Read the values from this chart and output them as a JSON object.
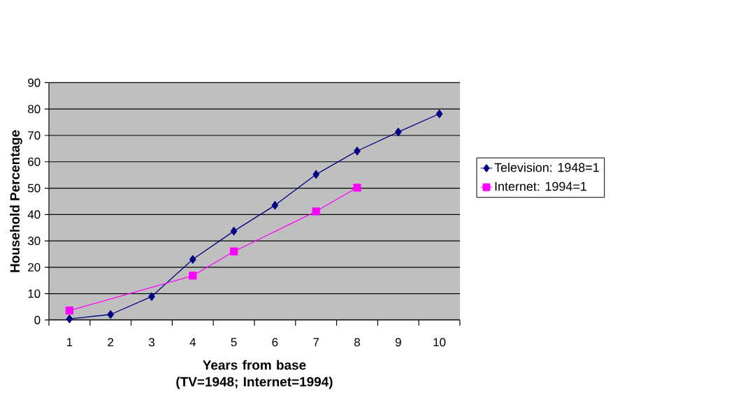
{
  "chart_data": {
    "type": "line",
    "xlabel": "Years from base (TV=1948; Internet=1994)",
    "ylabel": "Household Percentage",
    "categories": [
      "1",
      "2",
      "3",
      "4",
      "5",
      "6",
      "7",
      "8",
      "9",
      "10"
    ],
    "series": [
      {
        "name": "Television: 1948=1",
        "color": "#000080",
        "marker": "diamond",
        "values": [
          0.4,
          2.1,
          8.9,
          23,
          33.7,
          43.5,
          55.2,
          64.1,
          71.3,
          78.2
        ]
      },
      {
        "name": "Internet: 1994=1",
        "color": "#ff00ff",
        "marker": "square",
        "values": [
          3.6,
          null,
          null,
          16.8,
          26,
          null,
          41.2,
          50.2,
          null,
          null
        ]
      }
    ],
    "ylim": [
      0,
      90
    ],
    "yticks": [
      0,
      10,
      20,
      30,
      40,
      50,
      60,
      70,
      80,
      90
    ],
    "grid": "y",
    "legend": "right"
  }
}
